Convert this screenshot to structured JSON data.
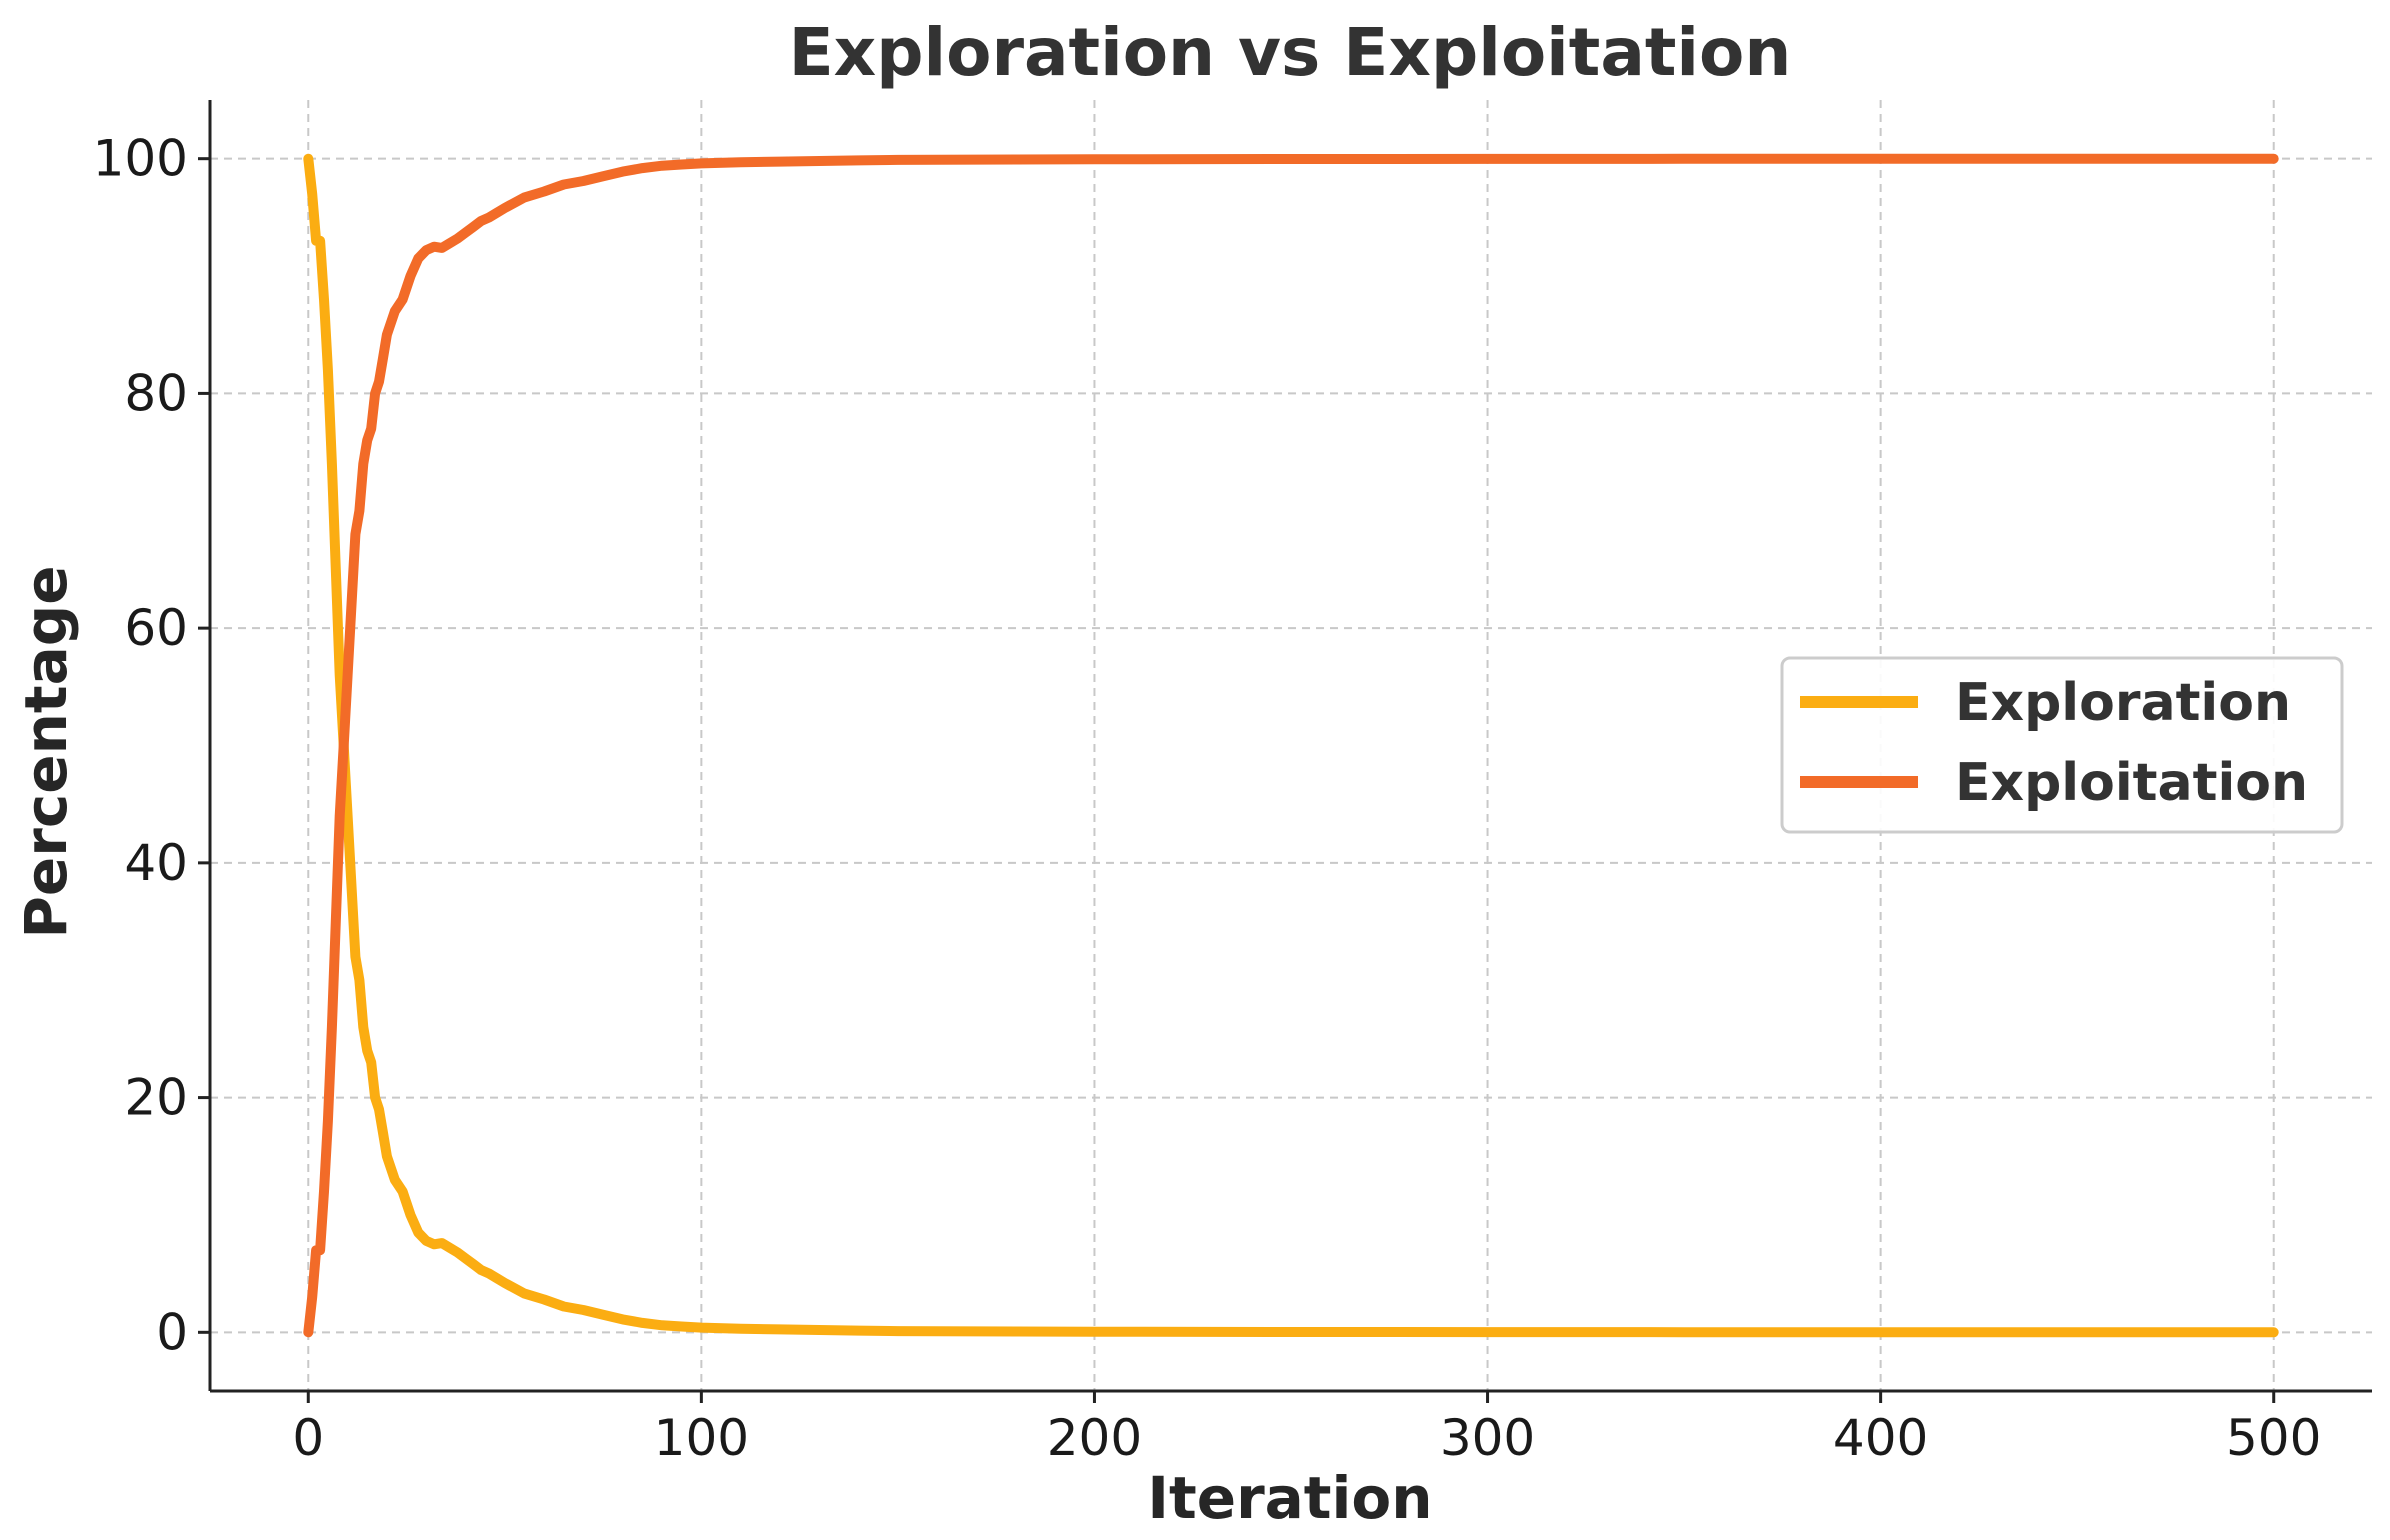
{
  "chart_data": {
    "type": "line",
    "title": "Exploration vs Exploitation",
    "xlabel": "Iteration",
    "ylabel": "Percentage",
    "xlim": [
      -25,
      525
    ],
    "ylim": [
      -5,
      105
    ],
    "xticks": [
      0,
      100,
      200,
      300,
      400,
      500
    ],
    "yticks": [
      0,
      20,
      40,
      60,
      80,
      100
    ],
    "grid": true,
    "legend_position": "center-right",
    "series": [
      {
        "name": "Exploration",
        "color": "#FBAD12",
        "x": [
          0,
          1,
          2,
          3,
          4,
          5,
          6,
          7,
          8,
          9,
          10,
          11,
          12,
          13,
          14,
          15,
          16,
          17,
          18,
          19,
          20,
          22,
          24,
          26,
          28,
          30,
          32,
          34,
          36,
          38,
          40,
          42,
          44,
          46,
          48,
          50,
          55,
          60,
          65,
          70,
          75,
          80,
          85,
          90,
          95,
          100,
          110,
          120,
          130,
          140,
          150,
          170,
          200,
          250,
          300,
          350,
          400,
          450,
          500
        ],
        "values": [
          100,
          97,
          93,
          93,
          88,
          82,
          74,
          65,
          56,
          50,
          44,
          38,
          32,
          30,
          26,
          24,
          23,
          20,
          19,
          17,
          15,
          13,
          12,
          10,
          8.5,
          7.8,
          7.5,
          7.6,
          7.2,
          6.8,
          6.3,
          5.8,
          5.3,
          5.0,
          4.6,
          4.2,
          3.3,
          2.8,
          2.2,
          1.9,
          1.5,
          1.1,
          0.8,
          0.6,
          0.5,
          0.4,
          0.3,
          0.25,
          0.2,
          0.15,
          0.1,
          0.08,
          0.05,
          0.03,
          0.02,
          0.01,
          0,
          0,
          0
        ]
      },
      {
        "name": "Exploitation",
        "color": "#F26B28",
        "x": [
          0,
          1,
          2,
          3,
          4,
          5,
          6,
          7,
          8,
          9,
          10,
          11,
          12,
          13,
          14,
          15,
          16,
          17,
          18,
          19,
          20,
          22,
          24,
          26,
          28,
          30,
          32,
          34,
          36,
          38,
          40,
          42,
          44,
          46,
          48,
          50,
          55,
          60,
          65,
          70,
          75,
          80,
          85,
          90,
          95,
          100,
          110,
          120,
          130,
          140,
          150,
          170,
          200,
          250,
          300,
          350,
          400,
          450,
          500
        ],
        "values": [
          0,
          3,
          7,
          7,
          12,
          18,
          26,
          35,
          44,
          50,
          56,
          62,
          68,
          70,
          74,
          76,
          77,
          80,
          81,
          83,
          85,
          87,
          88,
          90,
          91.5,
          92.2,
          92.5,
          92.4,
          92.8,
          93.2,
          93.7,
          94.2,
          94.7,
          95.0,
          95.4,
          95.8,
          96.7,
          97.2,
          97.8,
          98.1,
          98.5,
          98.9,
          99.2,
          99.4,
          99.5,
          99.6,
          99.7,
          99.75,
          99.8,
          99.85,
          99.9,
          99.92,
          99.95,
          99.97,
          99.98,
          99.99,
          100,
          100,
          100
        ]
      }
    ]
  }
}
